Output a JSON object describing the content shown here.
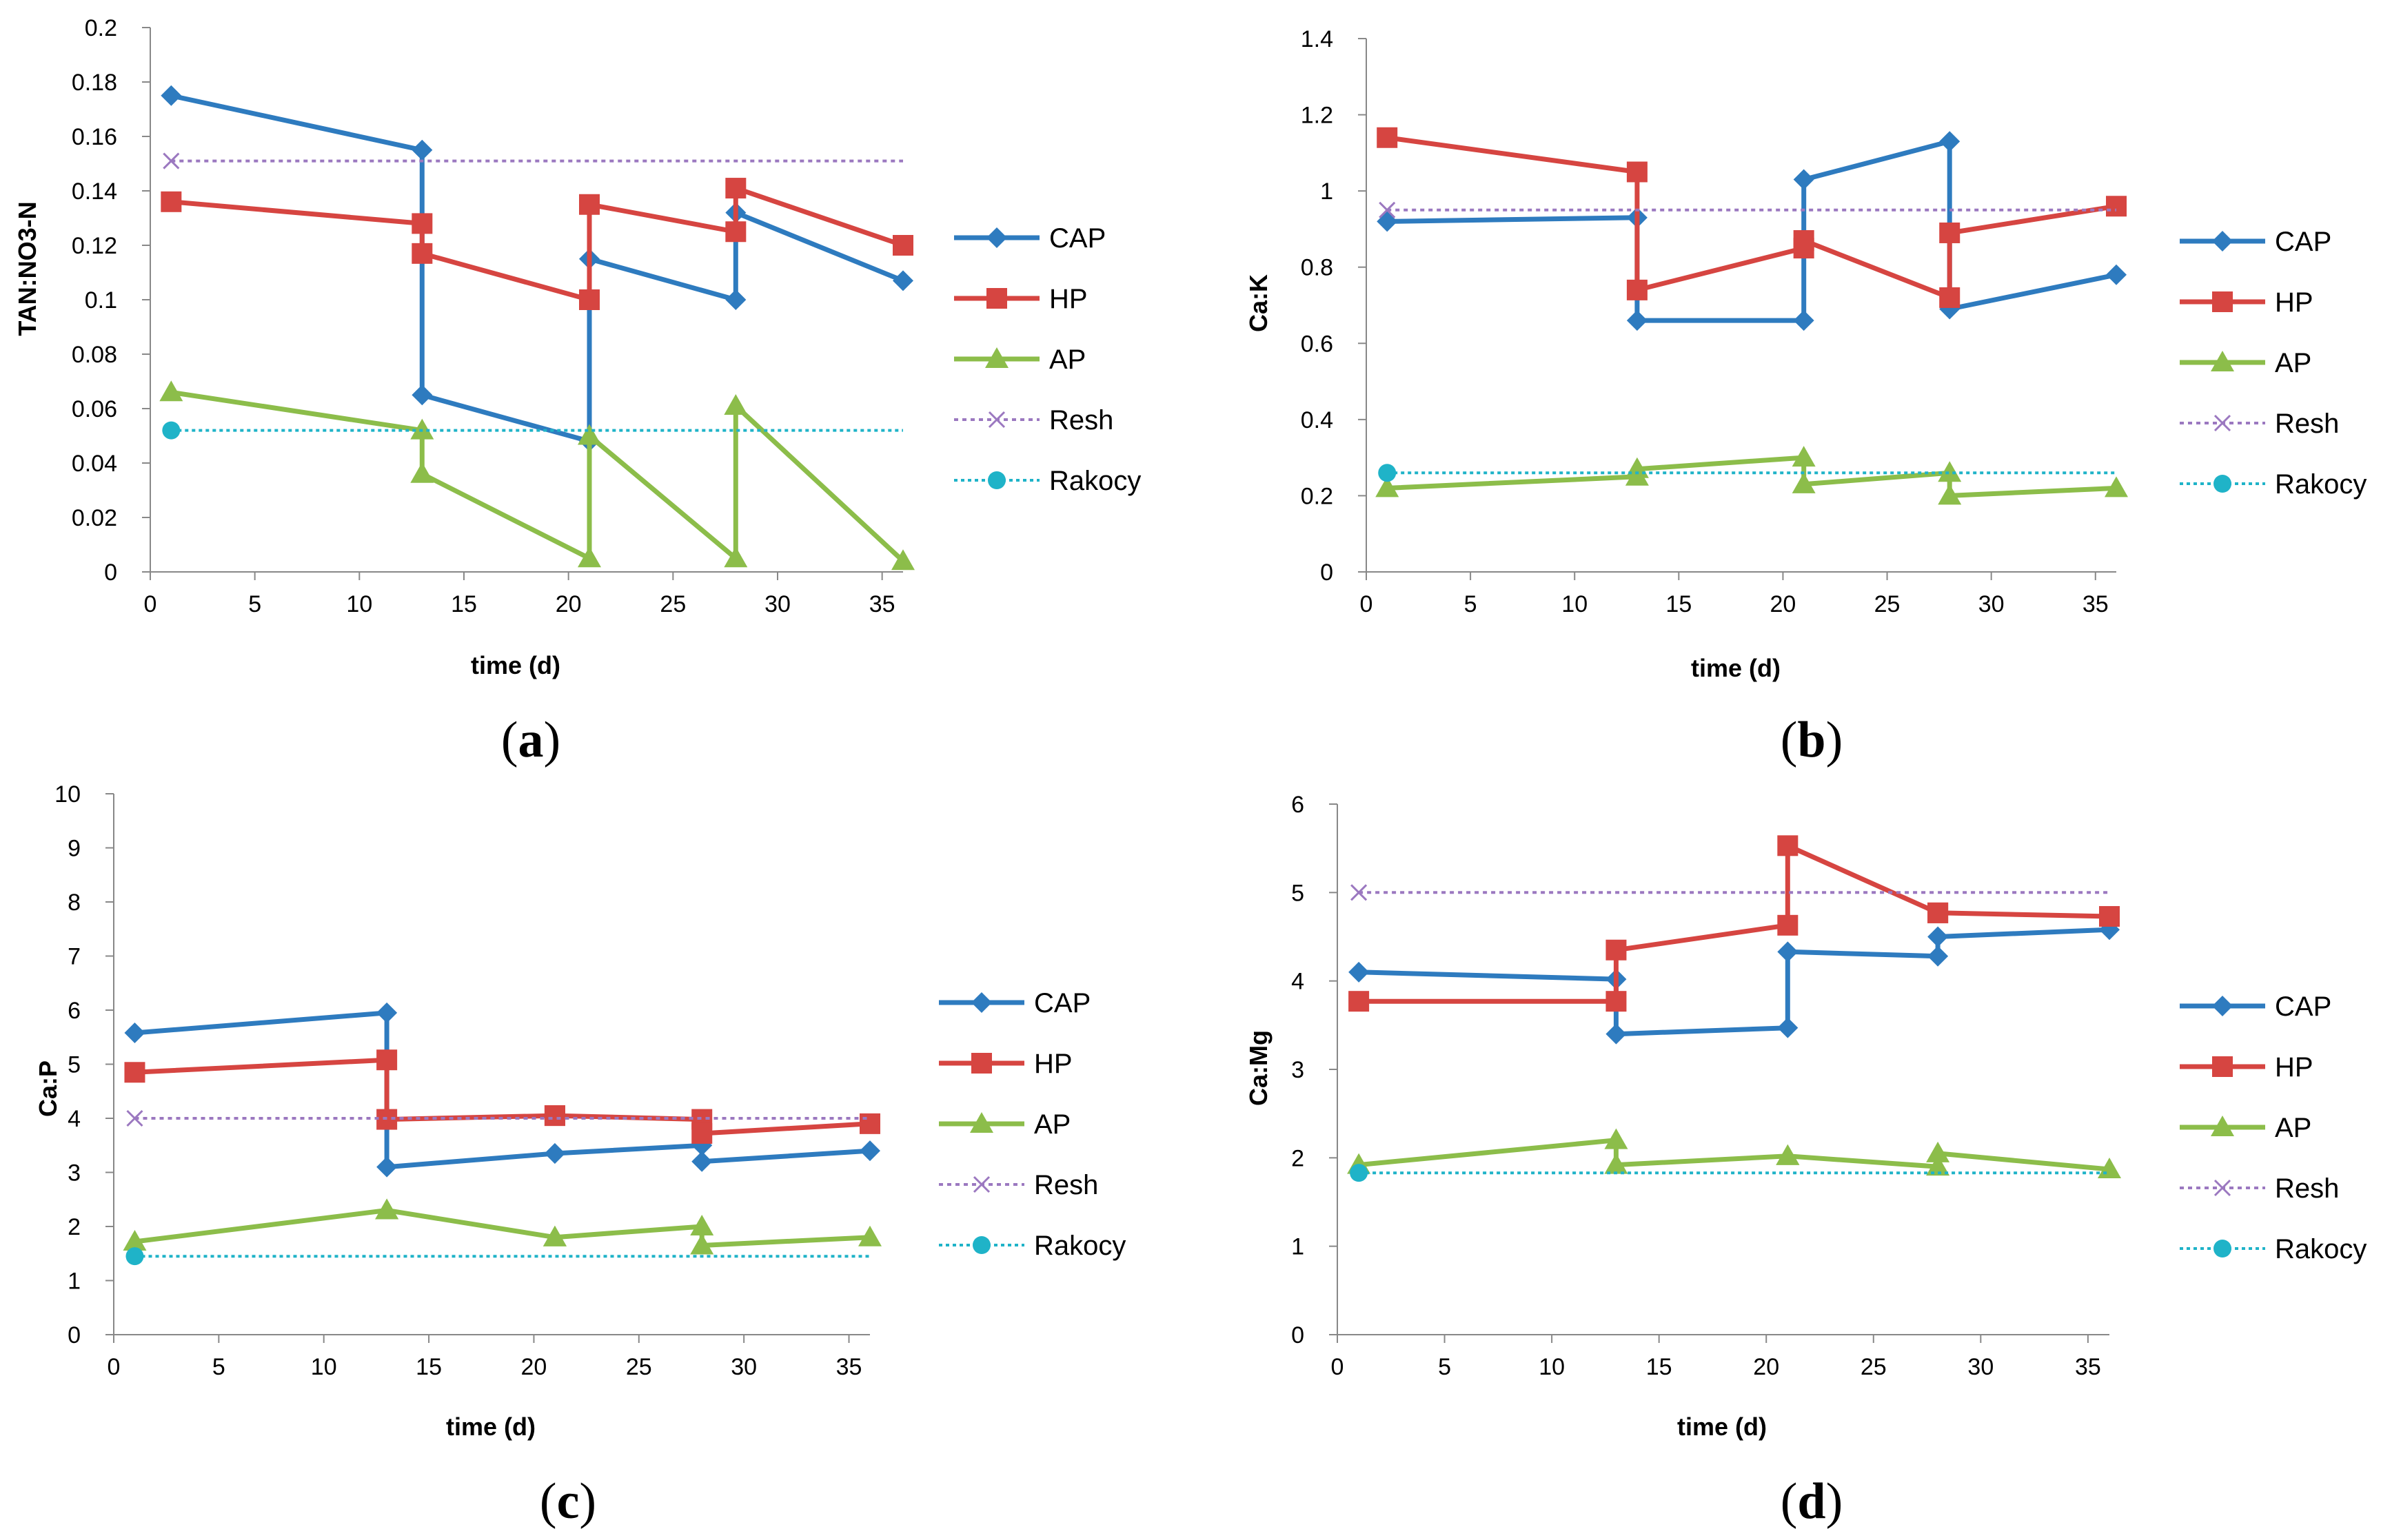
{
  "chart_data": [
    {
      "type": "line",
      "panel_label": "a",
      "xlabel": "time (d)",
      "ylabel": "TAN:NO3-N",
      "xlim": [
        0,
        36
      ],
      "xticks": [
        0,
        5,
        10,
        15,
        20,
        25,
        30,
        35
      ],
      "ylim": [
        0,
        0.2
      ],
      "yticks": [
        0,
        0.02,
        0.04,
        0.06,
        0.08,
        0.1,
        0.12,
        0.14,
        0.16,
        0.18,
        0.2
      ],
      "ytick_labels": [
        "0",
        "0.02",
        "0.04",
        "0.06",
        "0.08",
        "0.1",
        "0.12",
        "0.14",
        "0.16",
        "0.18",
        "0.2"
      ],
      "legend": [
        "CAP",
        "HP",
        "AP",
        "Resh",
        "Rakocy"
      ],
      "series": [
        {
          "name": "CAP",
          "x": [
            1,
            13,
            13,
            21,
            21,
            28,
            28,
            36
          ],
          "y": [
            0.175,
            0.155,
            0.065,
            0.048,
            0.115,
            0.1,
            0.132,
            0.107
          ]
        },
        {
          "name": "HP",
          "x": [
            1,
            13,
            13,
            21,
            21,
            28,
            28,
            36
          ],
          "y": [
            0.136,
            0.128,
            0.117,
            0.1,
            0.135,
            0.125,
            0.141,
            0.12
          ]
        },
        {
          "name": "AP",
          "x": [
            1,
            13,
            13,
            21,
            21,
            28,
            28,
            36
          ],
          "y": [
            0.066,
            0.052,
            0.036,
            0.005,
            0.05,
            0.005,
            0.061,
            0.004
          ]
        },
        {
          "name": "Resh",
          "x": [
            1,
            36
          ],
          "y": [
            0.151,
            0.151
          ]
        },
        {
          "name": "Rakocy",
          "x": [
            1,
            36
          ],
          "y": [
            0.052,
            0.052
          ]
        }
      ]
    },
    {
      "type": "line",
      "panel_label": "b",
      "xlabel": "time (d)",
      "ylabel": "Ca:K",
      "xlim": [
        0,
        36
      ],
      "xticks": [
        0,
        5,
        10,
        15,
        20,
        25,
        30,
        35
      ],
      "ylim": [
        0,
        1.4
      ],
      "yticks": [
        0,
        0.2,
        0.4,
        0.6,
        0.8,
        1,
        1.2,
        1.4
      ],
      "ytick_labels": [
        "0",
        "0.2",
        "0.4",
        "0.6",
        "0.8",
        "1",
        "1.2",
        "1.4"
      ],
      "legend": [
        "CAP",
        "HP",
        "AP",
        "Resh",
        "Rakocy"
      ],
      "series": [
        {
          "name": "CAP",
          "x": [
            1,
            13,
            13,
            21,
            21,
            28,
            28,
            36
          ],
          "y": [
            0.92,
            0.93,
            0.66,
            0.66,
            1.03,
            1.13,
            0.69,
            0.78
          ]
        },
        {
          "name": "HP",
          "x": [
            1,
            13,
            13,
            21,
            21,
            28,
            28,
            36
          ],
          "y": [
            1.14,
            1.05,
            0.74,
            0.85,
            0.87,
            0.72,
            0.89,
            0.96
          ]
        },
        {
          "name": "AP",
          "x": [
            1,
            13,
            13,
            21,
            21,
            28,
            28,
            36
          ],
          "y": [
            0.22,
            0.25,
            0.27,
            0.3,
            0.23,
            0.26,
            0.2,
            0.22
          ]
        },
        {
          "name": "Resh",
          "x": [
            1,
            36
          ],
          "y": [
            0.95,
            0.95
          ]
        },
        {
          "name": "Rakocy",
          "x": [
            1,
            36
          ],
          "y": [
            0.26,
            0.26
          ]
        }
      ]
    },
    {
      "type": "line",
      "panel_label": "c",
      "xlabel": "time (d)",
      "ylabel": "Ca:P",
      "xlim": [
        0,
        36
      ],
      "xticks": [
        0,
        5,
        10,
        15,
        20,
        25,
        30,
        35
      ],
      "ylim": [
        0,
        10
      ],
      "yticks": [
        0,
        1,
        2,
        3,
        4,
        5,
        6,
        7,
        8,
        9,
        10
      ],
      "ytick_labels": [
        "0",
        "1",
        "2",
        "3",
        "4",
        "5",
        "6",
        "7",
        "8",
        "9",
        "10"
      ],
      "legend": [
        "CAP",
        "HP",
        "AP",
        "Resh",
        "Rakocy"
      ],
      "series": [
        {
          "name": "CAP",
          "x": [
            1,
            13,
            13,
            21,
            21,
            28,
            28,
            36
          ],
          "y": [
            5.58,
            5.95,
            3.1,
            3.35,
            3.35,
            3.5,
            3.2,
            3.4
          ]
        },
        {
          "name": "HP",
          "x": [
            1,
            13,
            13,
            21,
            21,
            28,
            28,
            36
          ],
          "y": [
            4.85,
            5.08,
            3.98,
            4.05,
            4.05,
            3.98,
            3.72,
            3.9
          ]
        },
        {
          "name": "AP",
          "x": [
            1,
            13,
            13,
            21,
            21,
            28,
            28,
            36
          ],
          "y": [
            1.72,
            2.3,
            2.3,
            1.8,
            1.8,
            2.0,
            1.65,
            1.8
          ]
        },
        {
          "name": "Resh",
          "x": [
            1,
            36
          ],
          "y": [
            4.0,
            4.0
          ]
        },
        {
          "name": "Rakocy",
          "x": [
            1,
            36
          ],
          "y": [
            1.45,
            1.45
          ]
        }
      ]
    },
    {
      "type": "line",
      "panel_label": "d",
      "xlabel": "time (d)",
      "ylabel": "Ca:Mg",
      "xlim": [
        0,
        36
      ],
      "xticks": [
        0,
        5,
        10,
        15,
        20,
        25,
        30,
        35
      ],
      "ylim": [
        0,
        6
      ],
      "yticks": [
        0,
        1,
        2,
        3,
        4,
        5,
        6
      ],
      "ytick_labels": [
        "0",
        "1",
        "2",
        "3",
        "4",
        "5",
        "6"
      ],
      "legend": [
        "CAP",
        "HP",
        "AP",
        "Resh",
        "Rakocy"
      ],
      "series": [
        {
          "name": "CAP",
          "x": [
            1,
            13,
            13,
            21,
            21,
            28,
            28,
            36
          ],
          "y": [
            4.1,
            4.02,
            3.4,
            3.47,
            4.33,
            4.28,
            4.5,
            4.58
          ]
        },
        {
          "name": "HP",
          "x": [
            1,
            13,
            13,
            21,
            21,
            28,
            28,
            36
          ],
          "y": [
            3.77,
            3.77,
            4.35,
            4.63,
            5.53,
            4.77,
            4.77,
            4.73
          ]
        },
        {
          "name": "AP",
          "x": [
            1,
            13,
            13,
            21,
            21,
            28,
            28,
            36
          ],
          "y": [
            1.92,
            2.2,
            1.92,
            2.02,
            2.02,
            1.9,
            2.05,
            1.87
          ]
        },
        {
          "name": "Resh",
          "x": [
            1,
            36
          ],
          "y": [
            5.0,
            5.0
          ]
        },
        {
          "name": "Rakocy",
          "x": [
            1,
            36
          ],
          "y": [
            1.83,
            1.83
          ]
        }
      ]
    }
  ],
  "colors": {
    "CAP": "#2e7bbf",
    "HP": "#d64541",
    "AP": "#8cbd4a",
    "Resh": "#9b78c0",
    "Rakocy": "#1fb3c8",
    "axis": "#888888"
  },
  "markers": {
    "CAP": "diamond",
    "HP": "square",
    "AP": "triangle",
    "Resh": "x",
    "Rakocy": "circle"
  }
}
